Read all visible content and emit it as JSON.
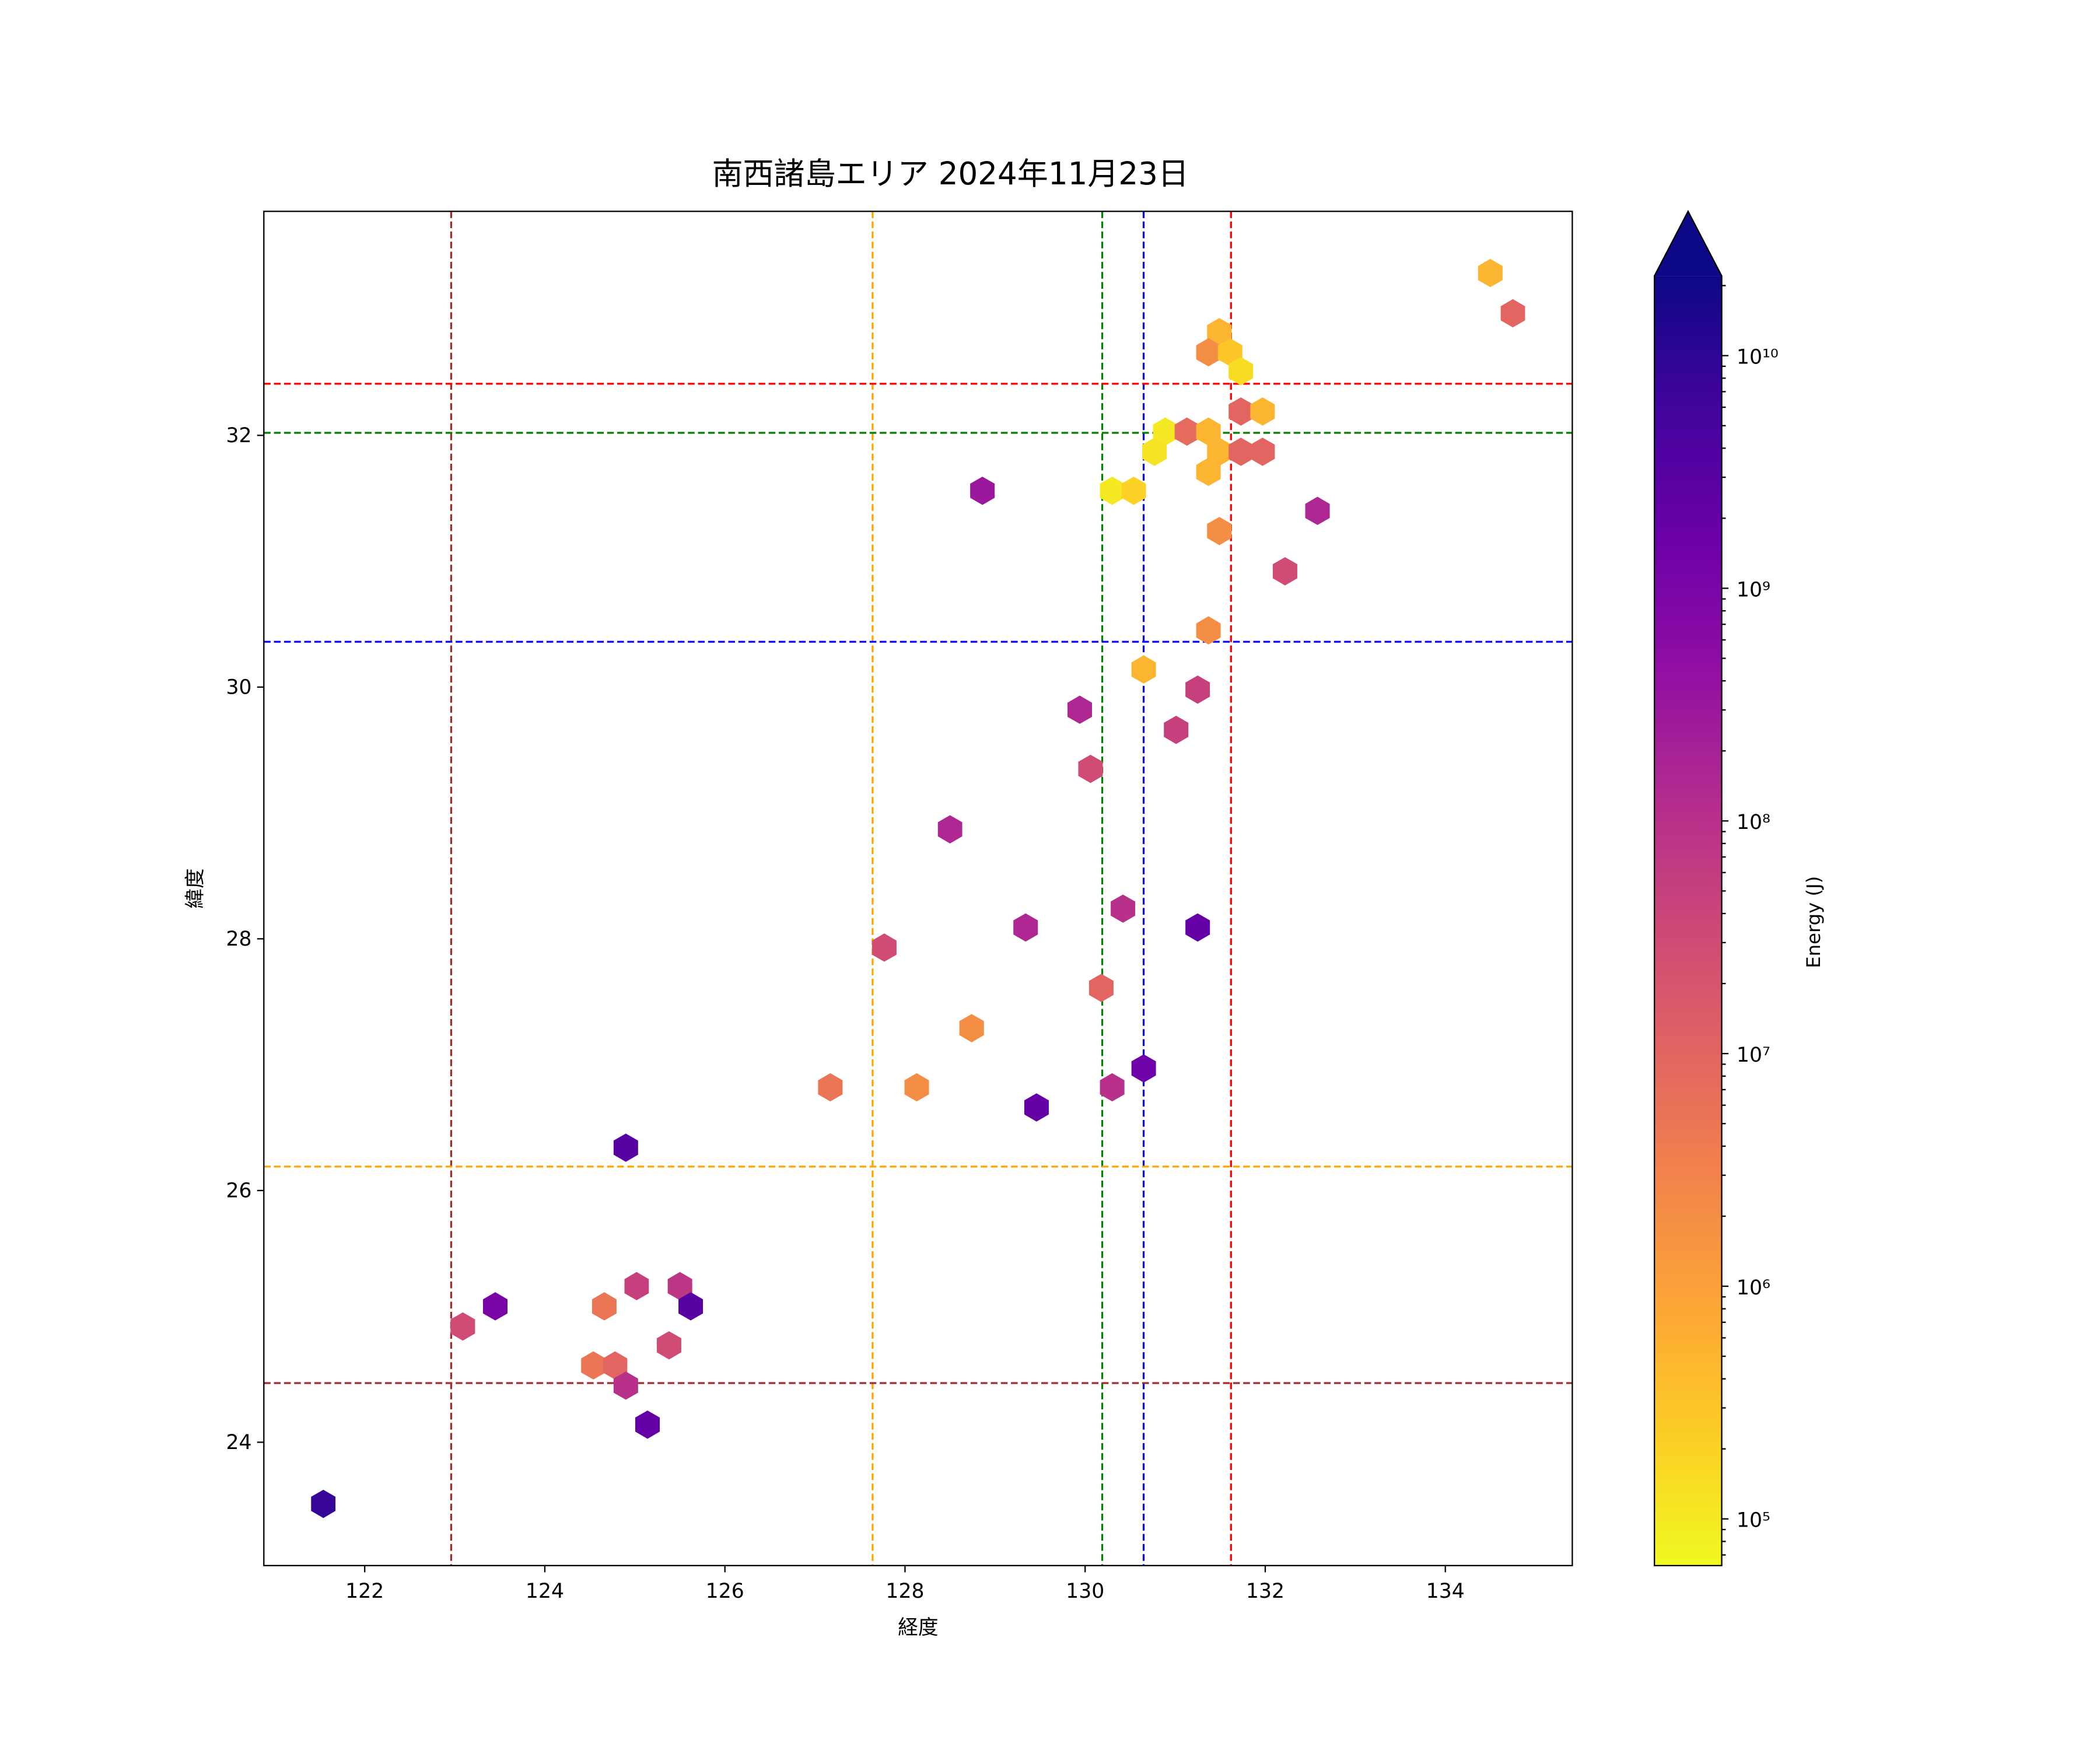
{
  "chart_data": {
    "type": "hexbin",
    "title": "南西諸島エリア 2024年11月23日",
    "xlabel": "経度",
    "ylabel": "緯度",
    "xlim": [
      120.88,
      135.41
    ],
    "ylim": [
      23.02,
      33.78
    ],
    "xticks": [
      122,
      124,
      126,
      128,
      130,
      132,
      134
    ],
    "yticks": [
      24,
      26,
      28,
      30,
      32
    ],
    "grid": false,
    "colorbar": {
      "label": "Energy (J)",
      "scale": "log",
      "range": [
        63000.0,
        22000000000.0
      ],
      "extend": "max",
      "colormap": "plasma",
      "ticks": [
        {
          "value": 100000.0,
          "label": "10⁵"
        },
        {
          "value": 1000000.0,
          "label": "10⁶"
        },
        {
          "value": 10000000.0,
          "label": "10⁷"
        },
        {
          "value": 100000000.0,
          "label": "10⁸"
        },
        {
          "value": 1000000000.0,
          "label": "10⁹"
        },
        {
          "value": 10000000000.0,
          "label": "10¹⁰"
        }
      ]
    },
    "vlines": [
      {
        "x": 122.96,
        "color": "#a52a2a"
      },
      {
        "x": 127.64,
        "color": "#ffa500"
      },
      {
        "x": 130.19,
        "color": "#008000"
      },
      {
        "x": 130.65,
        "color": "#0000ff"
      },
      {
        "x": 131.62,
        "color": "#ff0000"
      }
    ],
    "hlines": [
      {
        "y": 32.41,
        "color": "#ff0000"
      },
      {
        "y": 32.02,
        "color": "#008000"
      },
      {
        "y": 30.36,
        "color": "#0000ff"
      },
      {
        "y": 26.19,
        "color": "#ffa500"
      },
      {
        "y": 24.47,
        "color": "#a52a2a"
      }
    ],
    "points": [
      [
        134.5,
        33.29,
        500000.0
      ],
      [
        134.75,
        32.97,
        10000000.0
      ],
      [
        131.49,
        32.82,
        500000.0
      ],
      [
        131.37,
        32.66,
        2000000.0
      ],
      [
        131.61,
        32.66,
        300000.0
      ],
      [
        131.73,
        32.51,
        150000.0
      ],
      [
        131.73,
        32.19,
        10000000.0
      ],
      [
        131.97,
        32.19,
        500000.0
      ],
      [
        130.89,
        32.03,
        100000.0
      ],
      [
        131.13,
        32.03,
        8000000.0
      ],
      [
        131.37,
        32.03,
        500000.0
      ],
      [
        130.77,
        31.87,
        120000.0
      ],
      [
        131.49,
        31.87,
        500000.0
      ],
      [
        131.73,
        31.87,
        10000000.0
      ],
      [
        131.97,
        31.87,
        10000000.0
      ],
      [
        131.37,
        31.71,
        500000.0
      ],
      [
        130.3,
        31.56,
        100000.0
      ],
      [
        130.54,
        31.56,
        200000.0
      ],
      [
        128.86,
        31.56,
        300000000.0
      ],
      [
        132.58,
        31.4,
        150000000.0
      ],
      [
        131.49,
        31.24,
        2000000.0
      ],
      [
        132.22,
        30.92,
        30000000.0
      ],
      [
        131.37,
        30.45,
        2000000.0
      ],
      [
        130.65,
        30.14,
        500000.0
      ],
      [
        129.94,
        29.82,
        150000000.0
      ],
      [
        131.25,
        29.98,
        50000000.0
      ],
      [
        131.01,
        29.66,
        50000000.0
      ],
      [
        130.06,
        29.35,
        30000000.0
      ],
      [
        128.5,
        28.87,
        150000000.0
      ],
      [
        127.77,
        27.93,
        30000000.0
      ],
      [
        129.34,
        28.09,
        150000000.0
      ],
      [
        130.42,
        28.24,
        100000000.0
      ],
      [
        131.25,
        28.09,
        2000000000.0
      ],
      [
        130.18,
        27.61,
        10000000.0
      ],
      [
        128.74,
        27.29,
        2000000.0
      ],
      [
        127.17,
        26.82,
        5000000.0
      ],
      [
        128.13,
        26.82,
        2000000.0
      ],
      [
        129.46,
        26.66,
        2000000000.0
      ],
      [
        130.3,
        26.82,
        100000000.0
      ],
      [
        130.65,
        26.97,
        1500000000.0
      ],
      [
        124.9,
        26.34,
        3000000000.0
      ],
      [
        123.09,
        24.92,
        30000000.0
      ],
      [
        123.45,
        25.08,
        1000000000.0
      ],
      [
        124.66,
        25.08,
        5000000.0
      ],
      [
        125.02,
        25.24,
        50000000.0
      ],
      [
        125.5,
        25.24,
        80000000.0
      ],
      [
        125.62,
        25.08,
        3000000000.0
      ],
      [
        125.38,
        24.77,
        30000000.0
      ],
      [
        124.54,
        24.61,
        5000000.0
      ],
      [
        124.78,
        24.61,
        10000000.0
      ],
      [
        124.9,
        24.45,
        100000000.0
      ],
      [
        125.14,
        24.14,
        2000000000.0
      ],
      [
        121.54,
        23.51,
        8000000000.0
      ]
    ]
  }
}
